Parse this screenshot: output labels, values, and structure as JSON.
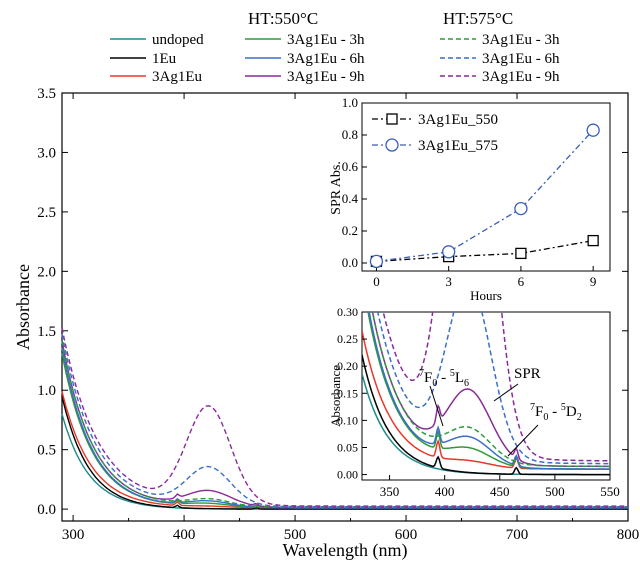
{
  "chart_data": [
    {
      "type": "line",
      "xlabel": "Wavelength (nm)",
      "ylabel": "Absorbance",
      "xlim": [
        290,
        800
      ],
      "ylim": [
        -0.1,
        3.5
      ],
      "xticks": [
        300,
        400,
        500,
        600,
        700,
        800
      ],
      "yticks": [
        0.0,
        0.5,
        1.0,
        1.5,
        2.0,
        2.5,
        3.0,
        3.5
      ],
      "legend_group_headers": [
        "HT:550°C",
        "HT:575°C"
      ],
      "series": [
        {
          "name": "undoped",
          "color": "#1f8a8a",
          "dash": "solid",
          "amp": 0.8,
          "decay": 24,
          "base": 0.0,
          "peak": 0.0,
          "ripple": 0.0
        },
        {
          "name": "1Eu",
          "color": "#000000",
          "dash": "solid",
          "amp": 0.95,
          "decay": 24,
          "base": 0.0,
          "peak": 0.0,
          "ripple": 0.02
        },
        {
          "name": "3Ag1Eu",
          "color": "#e8382a",
          "dash": "solid",
          "amp": 0.98,
          "decay": 26,
          "base": 0.01,
          "peak": 0.01,
          "ripple": 0.03
        },
        {
          "name": "3Ag1Eu - 3h",
          "group": "HT:550°C",
          "color": "#2e9a3a",
          "dash": "solid",
          "amp": 1.3,
          "decay": 27,
          "base": 0.01,
          "peak": 0.03,
          "ripple": 0.03
        },
        {
          "name": "3Ag1Eu - 6h",
          "group": "HT:550°C",
          "color": "#3a6ec8",
          "dash": "solid",
          "amp": 1.35,
          "decay": 27,
          "base": 0.01,
          "peak": 0.05,
          "ripple": 0.03
        },
        {
          "name": "3Ag1Eu - 9h",
          "group": "HT:550°C",
          "color": "#8a2a9a",
          "dash": "solid",
          "amp": 1.4,
          "decay": 28,
          "base": 0.015,
          "peak": 0.13,
          "ripple": 0.03
        },
        {
          "name": "3Ag1Eu - 3h",
          "group": "HT:575°C",
          "color": "#2e9a3a",
          "dash": "dashed",
          "amp": 1.4,
          "decay": 28,
          "base": 0.015,
          "peak": 0.06,
          "ripple": 0.0
        },
        {
          "name": "3Ag1Eu - 6h",
          "group": "HT:575°C",
          "color": "#3a6ec8",
          "dash": "dashed",
          "amp": 1.45,
          "decay": 30,
          "base": 0.02,
          "peak": 0.32,
          "ripple": 0.0
        },
        {
          "name": "3Ag1Eu - 9h",
          "group": "HT:575°C",
          "color": "#8a2a9a",
          "dash": "dashed",
          "amp": 1.5,
          "decay": 32,
          "base": 0.025,
          "peak": 0.82,
          "ripple": 0.0
        }
      ],
      "insets": [
        {
          "type": "scatter-line",
          "xlabel": "Hours",
          "ylabel": "SPR Abs.",
          "xlim": [
            -0.6,
            9.7
          ],
          "ylim": [
            -0.05,
            1.0
          ],
          "xticks": [
            0,
            3,
            6,
            9
          ],
          "yticks": [
            0.0,
            0.2,
            0.4,
            0.6,
            0.8,
            1.0
          ],
          "series": [
            {
              "name": "3Ag1Eu_550",
              "marker": "square",
              "color": "#000000",
              "dash": "dashdot",
              "x": [
                0,
                3,
                6,
                9
              ],
              "y": [
                0.01,
                0.04,
                0.06,
                0.14
              ]
            },
            {
              "name": "3Ag1Eu_575",
              "marker": "circle",
              "color": "#3a5fb8",
              "dash": "dashdot",
              "x": [
                0,
                3,
                6,
                9
              ],
              "y": [
                0.01,
                0.07,
                0.34,
                0.83
              ]
            }
          ]
        },
        {
          "type": "line",
          "ylabel": "Absorbance",
          "xlim": [
            325,
            550
          ],
          "ylim": [
            -0.01,
            0.3
          ],
          "xticks": [
            350,
            400,
            450,
            500,
            550
          ],
          "yticks": [
            0.0,
            0.05,
            0.1,
            0.15,
            0.2,
            0.25,
            0.3
          ],
          "annotations": {
            "spr": "SPR",
            "f0l6": {
              "sup1": "7",
              "main1": "F",
              "sub1": "0",
              "dash": " - ",
              "sup2": "5",
              "main2": "L",
              "sub2": "6"
            },
            "f0d2": {
              "sup1": "7",
              "main1": "F",
              "sub1": "0",
              "dash": " - ",
              "sup2": "5",
              "main2": "D",
              "sub2": "2"
            }
          }
        }
      ]
    }
  ]
}
